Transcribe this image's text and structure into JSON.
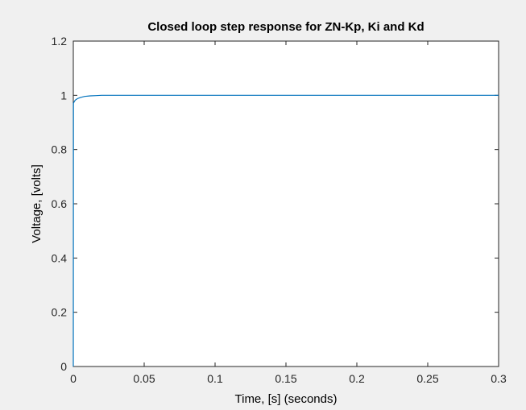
{
  "chart_data": {
    "type": "line",
    "title": "Closed loop step response for ZN-Kp, Ki and Kd",
    "xlabel": "Time, [s] (seconds)",
    "ylabel": "Voltage, [volts]",
    "xlim": [
      0,
      0.3
    ],
    "ylim": [
      0,
      1.2
    ],
    "xticks": [
      0,
      0.05,
      0.1,
      0.15,
      0.2,
      0.25,
      0.3
    ],
    "xtick_labels": [
      "0",
      "0.05",
      "0.1",
      "0.15",
      "0.2",
      "0.25",
      "0.3"
    ],
    "yticks": [
      0,
      0.2,
      0.4,
      0.6,
      0.8,
      1.0,
      1.2
    ],
    "ytick_labels": [
      "0",
      "0.2",
      "0.4",
      "0.6",
      "0.8",
      "1",
      "1.2"
    ],
    "grid": false,
    "series": [
      {
        "color": "#0072bd",
        "x": [
          0,
          0.0001,
          0.0003,
          0.0005,
          0.0008,
          0.0012,
          0.0018,
          0.003,
          0.005,
          0.008,
          0.012,
          0.016,
          0.02,
          0.03,
          0.05,
          0.1,
          0.15,
          0.2,
          0.25,
          0.3
        ],
        "y": [
          0,
          0.97,
          0.973,
          0.975,
          0.978,
          0.981,
          0.984,
          0.988,
          0.992,
          0.996,
          0.998,
          0.999,
          1.0,
          1.0,
          1.0,
          1.0,
          1.0,
          1.0,
          1.0,
          1.0
        ]
      }
    ]
  }
}
